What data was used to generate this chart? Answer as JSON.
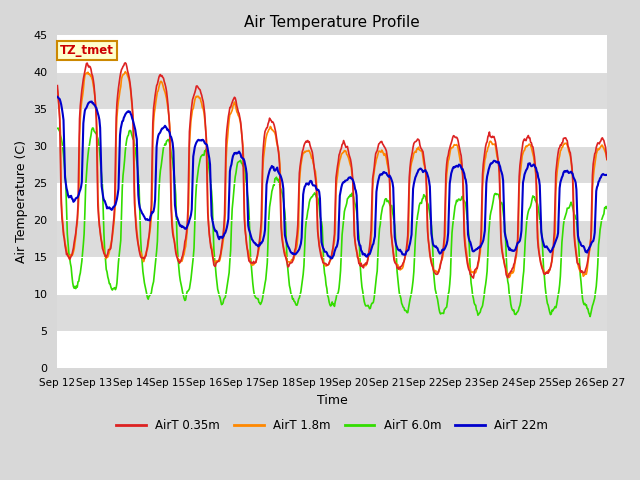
{
  "title": "Air Temperature Profile",
  "xlabel": "Time",
  "ylabel": "Air Temperature (C)",
  "ylim": [
    0,
    45
  ],
  "yticks": [
    0,
    5,
    10,
    15,
    20,
    25,
    30,
    35,
    40,
    45
  ],
  "annotation": "TZ_tmet",
  "fig_facecolor": "#d8d8d8",
  "plot_facecolor": "#e8e8e8",
  "series_colors": [
    "#dd2222",
    "#ff8800",
    "#33dd00",
    "#0000cc"
  ],
  "series_labels": [
    "AirT 0.35m",
    "AirT 1.8m",
    "AirT 6.0m",
    "AirT 22m"
  ],
  "xticklabels": [
    "Sep 12",
    "Sep 13",
    "Sep 14",
    "Sep 15",
    "Sep 16",
    "Sep 17",
    "Sep 18",
    "Sep 19",
    "Sep 20",
    "Sep 21",
    "Sep 22",
    "Sep 23",
    "Sep 24",
    "Sep 25",
    "Sep 26",
    "Sep 27"
  ],
  "n_days": 15,
  "ppd": 48,
  "grid_color": "#ffffff",
  "alt_band_color": "#dcdcdc"
}
